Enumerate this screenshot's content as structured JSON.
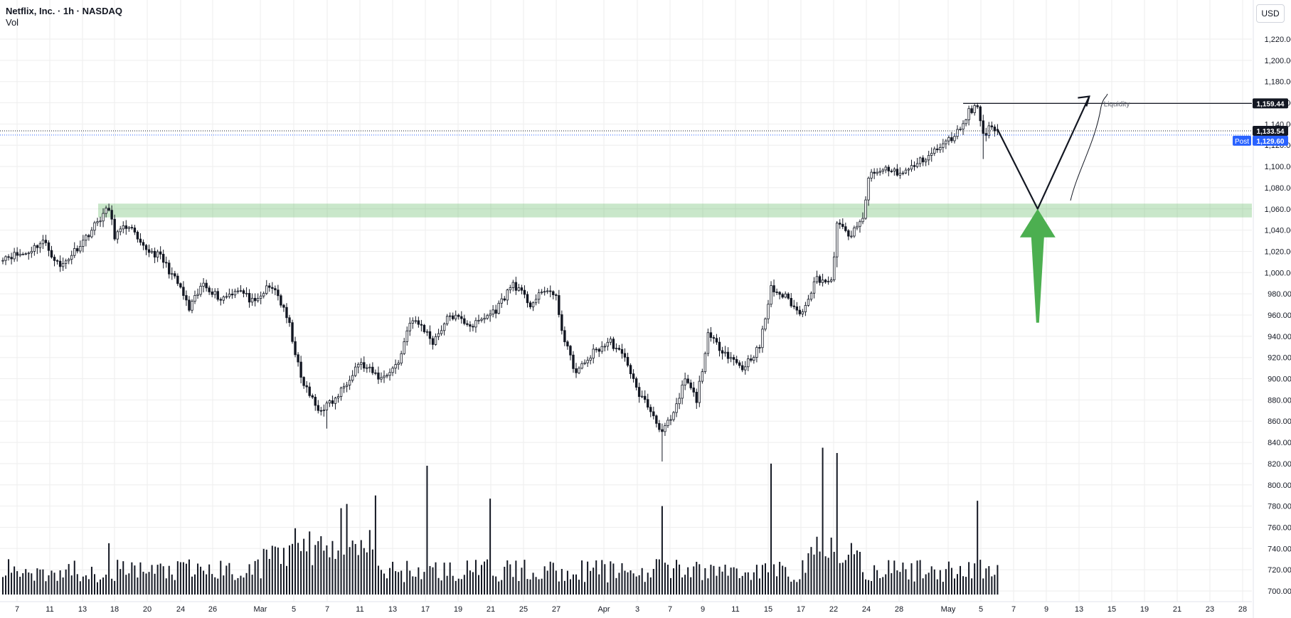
{
  "legend": {
    "title": "Netflix, Inc. · 1h · NASDAQ",
    "indicator": "Vol"
  },
  "currency": "USD",
  "badges": {
    "liquidity_price": "1,159.44",
    "last_price": "1,133.54",
    "post_label": "Post",
    "post_price": "1,129.60"
  },
  "colors": {
    "zone_fill": "#4caf50",
    "arrow_green": "#4caf50",
    "post_blue": "#2962ff",
    "grid": "#eeeeee",
    "candles": "#131722"
  },
  "chart_data": {
    "type": "candlestick",
    "y_axis": {
      "ylim": [
        693,
        1247
      ],
      "ticks": [
        "700.00",
        "720.00",
        "740.00",
        "760.00",
        "780.00",
        "800.00",
        "820.00",
        "840.00",
        "860.00",
        "880.00",
        "900.00",
        "920.00",
        "940.00",
        "960.00",
        "980.00",
        "1,000.00",
        "1,020.00",
        "1,040.00",
        "1,060.00",
        "1,080.00",
        "1,100.00",
        "1,120.00",
        "1,140.00",
        "1,160.00",
        "1,180.00",
        "1,200.00",
        "1,220.00"
      ]
    },
    "x_axis": {
      "ticks": [
        "7",
        "11",
        "13",
        "18",
        "20",
        "24",
        "26",
        "Mar",
        "5",
        "7",
        "11",
        "13",
        "17",
        "19",
        "21",
        "25",
        "27",
        "Apr",
        "3",
        "7",
        "9",
        "11",
        "15",
        "17",
        "22",
        "24",
        "28",
        "May",
        "5",
        "7",
        "9",
        "13",
        "15",
        "19",
        "21",
        "23",
        "28"
      ]
    },
    "grid": true,
    "price_path": [
      {
        "i": 0,
        "p": 1015
      },
      {
        "i": 8,
        "p": 1018
      },
      {
        "i": 14,
        "p": 1030
      },
      {
        "i": 20,
        "p": 1005
      },
      {
        "i": 28,
        "p": 1030
      },
      {
        "i": 35,
        "p": 1055
      },
      {
        "i": 37,
        "p": 1060
      },
      {
        "i": 39,
        "p": 1035
      },
      {
        "i": 44,
        "p": 1045
      },
      {
        "i": 48,
        "p": 1025
      },
      {
        "i": 55,
        "p": 1015
      },
      {
        "i": 62,
        "p": 985
      },
      {
        "i": 65,
        "p": 965
      },
      {
        "i": 70,
        "p": 990
      },
      {
        "i": 76,
        "p": 975
      },
      {
        "i": 82,
        "p": 985
      },
      {
        "i": 88,
        "p": 970
      },
      {
        "i": 92,
        "p": 985
      },
      {
        "i": 95,
        "p": 985
      },
      {
        "i": 100,
        "p": 950
      },
      {
        "i": 104,
        "p": 900
      },
      {
        "i": 110,
        "p": 870
      },
      {
        "i": 116,
        "p": 880
      },
      {
        "i": 124,
        "p": 915
      },
      {
        "i": 132,
        "p": 900
      },
      {
        "i": 138,
        "p": 915
      },
      {
        "i": 142,
        "p": 955
      },
      {
        "i": 146,
        "p": 950
      },
      {
        "i": 150,
        "p": 935
      },
      {
        "i": 156,
        "p": 960
      },
      {
        "i": 164,
        "p": 950
      },
      {
        "i": 172,
        "p": 965
      },
      {
        "i": 178,
        "p": 990
      },
      {
        "i": 184,
        "p": 970
      },
      {
        "i": 190,
        "p": 985
      },
      {
        "i": 193,
        "p": 975
      },
      {
        "i": 196,
        "p": 935
      },
      {
        "i": 200,
        "p": 905
      },
      {
        "i": 206,
        "p": 925
      },
      {
        "i": 212,
        "p": 935
      },
      {
        "i": 218,
        "p": 915
      },
      {
        "i": 221,
        "p": 890
      },
      {
        "i": 226,
        "p": 870
      },
      {
        "i": 230,
        "p": 850
      },
      {
        "i": 234,
        "p": 865
      },
      {
        "i": 238,
        "p": 900
      },
      {
        "i": 242,
        "p": 880
      },
      {
        "i": 246,
        "p": 940
      },
      {
        "i": 252,
        "p": 925
      },
      {
        "i": 258,
        "p": 910
      },
      {
        "i": 264,
        "p": 930
      },
      {
        "i": 268,
        "p": 985
      },
      {
        "i": 274,
        "p": 975
      },
      {
        "i": 278,
        "p": 960
      },
      {
        "i": 284,
        "p": 995
      },
      {
        "i": 289,
        "p": 990
      },
      {
        "i": 291,
        "p": 1045
      },
      {
        "i": 296,
        "p": 1035
      },
      {
        "i": 300,
        "p": 1050
      },
      {
        "i": 302,
        "p": 1090
      },
      {
        "i": 308,
        "p": 1098
      },
      {
        "i": 314,
        "p": 1093
      },
      {
        "i": 320,
        "p": 1105
      },
      {
        "i": 328,
        "p": 1120
      },
      {
        "i": 333,
        "p": 1132
      },
      {
        "i": 337,
        "p": 1152
      },
      {
        "i": 340,
        "p": 1157
      },
      {
        "i": 342,
        "p": 1130
      },
      {
        "i": 345,
        "p": 1138
      },
      {
        "i": 347,
        "p": 1135
      }
    ],
    "extremes": [
      {
        "i": 37,
        "high": 1065
      },
      {
        "i": 113,
        "low": 853
      },
      {
        "i": 230,
        "low": 822
      },
      {
        "i": 291,
        "low": 1005
      },
      {
        "i": 340,
        "high": 1160
      },
      {
        "i": 342,
        "low": 1107
      }
    ],
    "volume": {
      "bars": 348,
      "spikes": [
        {
          "i": 37,
          "v": 45
        },
        {
          "i": 118,
          "v": 78
        },
        {
          "i": 120,
          "v": 82
        },
        {
          "i": 130,
          "v": 90
        },
        {
          "i": 148,
          "v": 118
        },
        {
          "i": 170,
          "v": 87
        },
        {
          "i": 230,
          "v": 80
        },
        {
          "i": 268,
          "v": 120
        },
        {
          "i": 286,
          "v": 135
        },
        {
          "i": 291,
          "v": 130
        },
        {
          "i": 340,
          "v": 85
        }
      ]
    },
    "annotations": {
      "demand_zone": [
        1052,
        1065
      ],
      "liquidity_level": 1159.44,
      "liquidity_label": "Liquidity",
      "projection_path": [
        {
          "i": 347,
          "p": 1135
        },
        {
          "i": 361,
          "p": 1060
        },
        {
          "i": 379,
          "p": 1166
        }
      ]
    }
  }
}
